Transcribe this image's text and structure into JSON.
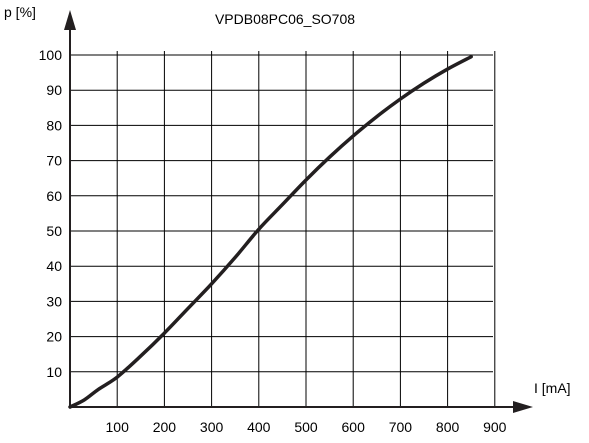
{
  "chart_data": {
    "type": "line",
    "title": "VPDB08PC06_SO708",
    "xlabel": "I [mA]",
    "ylabel": "p [%]",
    "xlim": [
      0,
      900
    ],
    "ylim": [
      0,
      100
    ],
    "x_ticks": [
      100,
      200,
      300,
      400,
      500,
      600,
      700,
      800,
      900
    ],
    "y_ticks": [
      10,
      20,
      30,
      40,
      50,
      60,
      70,
      80,
      90,
      100
    ],
    "grid": true,
    "colors": {
      "line": "#231f20",
      "grid": "#000000",
      "axis": "#231f20"
    },
    "series": [
      {
        "x": [
          0,
          30,
          60,
          100,
          150,
          200,
          250,
          300,
          350,
          400,
          450,
          500,
          550,
          600,
          650,
          700,
          750,
          800,
          850
        ],
        "y": [
          0,
          2,
          5,
          8.5,
          14.5,
          21,
          28,
          35,
          42.5,
          50.5,
          57.5,
          64.5,
          71,
          77,
          82.5,
          87.5,
          92,
          96,
          99.5
        ]
      }
    ]
  }
}
